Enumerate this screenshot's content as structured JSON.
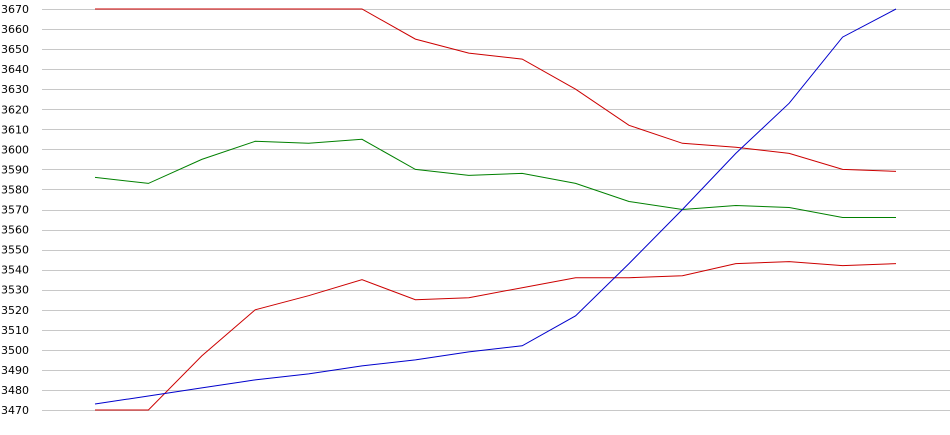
{
  "chart_data": {
    "type": "line",
    "title": "",
    "xlabel": "",
    "ylabel": "",
    "ylim": [
      3470,
      3670
    ],
    "yticks": [
      3670,
      3660,
      3650,
      3640,
      3630,
      3620,
      3610,
      3600,
      3590,
      3580,
      3570,
      3560,
      3550,
      3540,
      3530,
      3520,
      3510,
      3500,
      3490,
      3480,
      3470
    ],
    "x": [
      1,
      2,
      3,
      4,
      5,
      6,
      7,
      8,
      9,
      10,
      11,
      12,
      13,
      14,
      15,
      16
    ],
    "grid": true,
    "legend": "none",
    "series": [
      {
        "color": "#cc0000",
        "values": [
          3670,
          3670,
          3670,
          3670,
          3670,
          3670,
          3655,
          3648,
          3645,
          3630,
          3612,
          3603,
          3601,
          3598,
          3590,
          3589
        ]
      },
      {
        "color": "#008000",
        "values": [
          3586,
          3583,
          3595,
          3604,
          3603,
          3605,
          3590,
          3587,
          3588,
          3583,
          3574,
          3570,
          3572,
          3571,
          3566,
          3566
        ]
      },
      {
        "color": "#cc0000",
        "values": [
          3470,
          3470,
          3497,
          3520,
          3527,
          3535,
          3525,
          3526,
          3531,
          3536,
          3536,
          3537,
          3543,
          3544,
          3542,
          3543
        ]
      },
      {
        "color": "#0000cc",
        "values": [
          3473,
          3477,
          3481,
          3485,
          3488,
          3492,
          3495,
          3499,
          3502,
          3517,
          3543,
          3570,
          3598,
          3623,
          3656,
          3670
        ]
      }
    ]
  }
}
